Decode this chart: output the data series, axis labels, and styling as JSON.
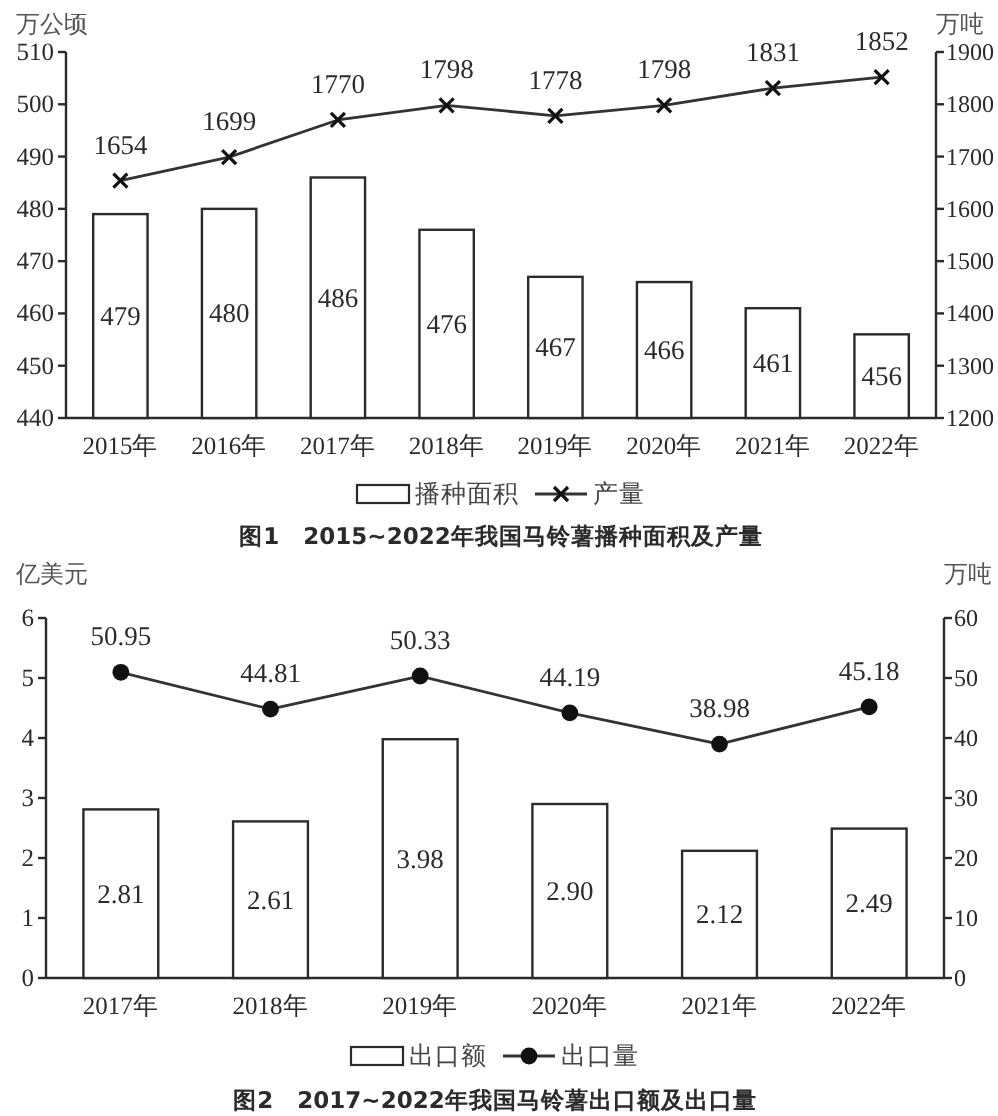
{
  "chart_data": [
    {
      "type": "bar",
      "title": "图1 2015~2022年我国马铃薯播种面积及产量",
      "ylabel": "万公顷",
      "y2label": "万吨",
      "categories": [
        "2015年",
        "2016年",
        "2017年",
        "2018年",
        "2019年",
        "2020年",
        "2021年",
        "2022年"
      ],
      "series": [
        {
          "name": "播种面积",
          "color": "#ffffff",
          "values": [
            479,
            480,
            486,
            476,
            467,
            466,
            461,
            456
          ]
        },
        {
          "name": "产量",
          "type": "line",
          "axis": "y2",
          "color": "#333333",
          "marker": "cross",
          "values": [
            1654,
            1699,
            1770,
            1798,
            1778,
            1798,
            1831,
            1852
          ]
        }
      ],
      "ylim": [
        440,
        510
      ],
      "yticks": [
        440,
        450,
        460,
        470,
        480,
        490,
        500,
        510
      ],
      "y2lim": [
        1200,
        1900
      ],
      "y2ticks": [
        1200,
        1300,
        1400,
        1500,
        1600,
        1700,
        1800,
        1900
      ],
      "data_labels": true,
      "legend": "bottom"
    },
    {
      "type": "bar",
      "title": "图2 2017~2022年我国马铃薯出口额及出口量",
      "ylabel": "亿美元",
      "y2label": "万吨",
      "categories": [
        "2017年",
        "2018年",
        "2019年",
        "2020年",
        "2021年",
        "2022年"
      ],
      "series": [
        {
          "name": "出口额",
          "color": "#ffffff",
          "values": [
            2.81,
            2.61,
            3.98,
            2.9,
            2.12,
            2.49
          ],
          "value_labels": [
            "2.81",
            "2.61",
            "3.98",
            "2.90",
            "2.12",
            "2.49"
          ]
        },
        {
          "name": "出口量",
          "type": "line",
          "axis": "y2",
          "color": "#333333",
          "marker": "circle",
          "values": [
            50.95,
            44.81,
            50.33,
            44.19,
            38.98,
            45.18
          ],
          "value_labels": [
            "50.95",
            "44.81",
            "50.33",
            "44.19",
            "38.98",
            "45.18"
          ]
        }
      ],
      "ylim": [
        0,
        6
      ],
      "yticks": [
        0,
        1,
        2,
        3,
        4,
        5,
        6
      ],
      "y2lim": [
        0,
        60
      ],
      "y2ticks": [
        0,
        10,
        20,
        30,
        40,
        50,
        60
      ],
      "legend": "bottom"
    }
  ]
}
